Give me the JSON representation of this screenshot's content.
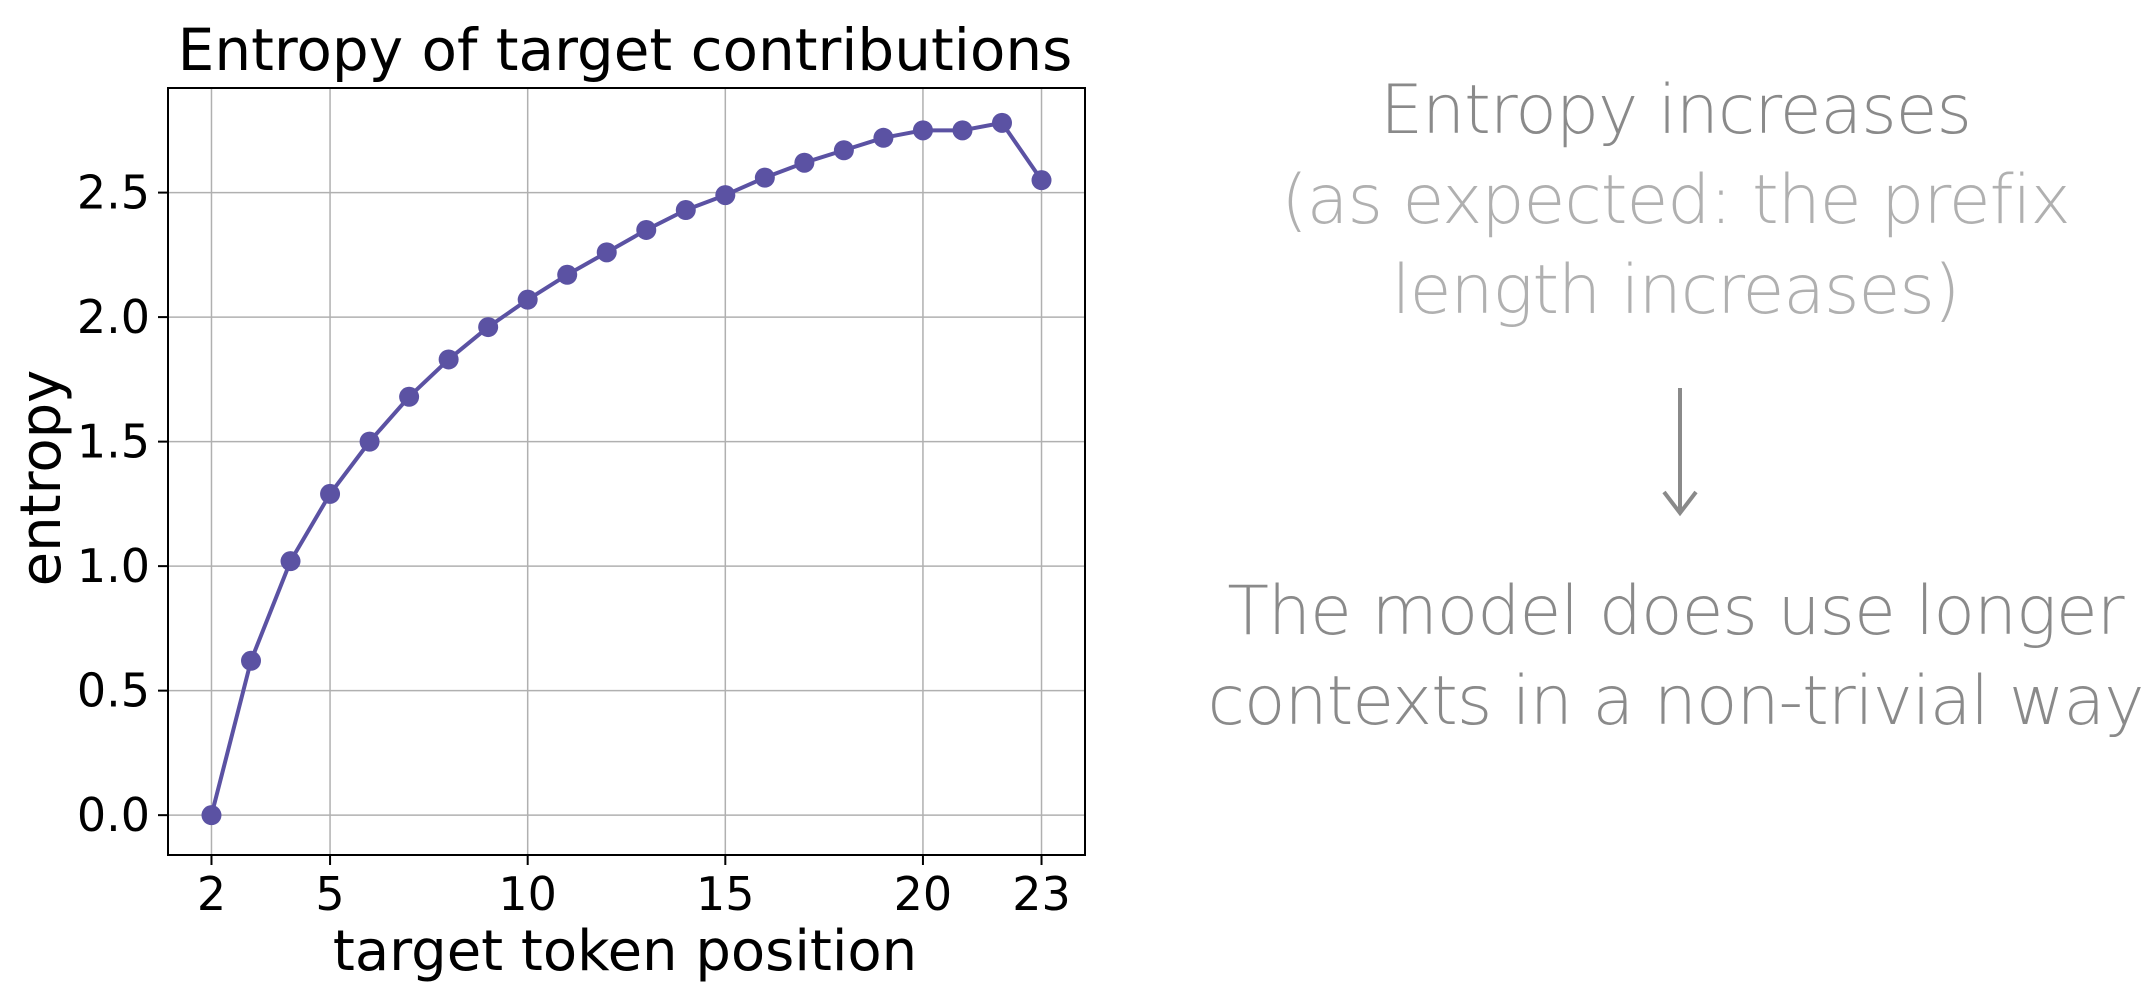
{
  "chart_data": {
    "type": "line",
    "title": "Entropy of target contributions",
    "xlabel": "target token position",
    "ylabel": "entropy",
    "x_ticks": [
      2,
      5,
      10,
      15,
      20,
      23
    ],
    "y_ticks": [
      "0.0",
      "0.5",
      "1.0",
      "1.5",
      "2.0",
      "2.5"
    ],
    "xlim": [
      0.9,
      24.1
    ],
    "ylim": [
      -0.16,
      2.92
    ],
    "grid": true,
    "series": [
      {
        "color": "#5b52a3",
        "x": [
          2,
          3,
          4,
          5,
          6,
          7,
          8,
          9,
          10,
          11,
          12,
          13,
          14,
          15,
          16,
          17,
          18,
          19,
          20,
          21,
          22,
          23
        ],
        "y": [
          0.0,
          0.62,
          1.02,
          1.29,
          1.5,
          1.68,
          1.83,
          1.96,
          2.07,
          2.17,
          2.26,
          2.35,
          2.43,
          2.49,
          2.56,
          2.62,
          2.67,
          2.72,
          2.75,
          2.75,
          2.78,
          2.55
        ]
      }
    ]
  },
  "annotation": {
    "heading": "Entropy increases",
    "sub_line_1": "(as expected: the prefix",
    "sub_line_2": "length increases)",
    "conclusion_line_1": "The model does use longer",
    "conclusion_line_2": "contexts in a non-trivial way",
    "arrow_icon": "arrow-down-icon",
    "text_color": "#8a8a8a",
    "sub_text_color": "#b0b0b0"
  }
}
